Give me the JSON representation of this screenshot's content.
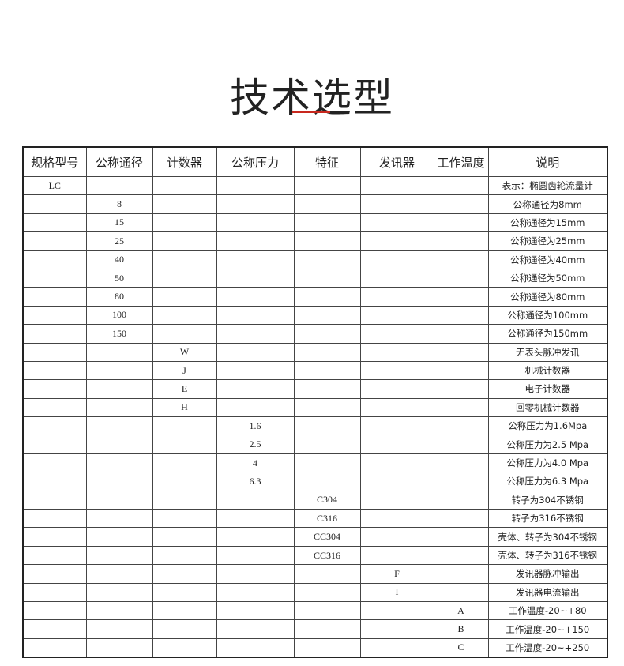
{
  "title": "技术选型",
  "accent_color": "#c8281e",
  "table": {
    "headers": [
      "规格型号",
      "公称通径",
      "计数器",
      "公称压力",
      "特征",
      "发讯器",
      "工作温度",
      "说明"
    ],
    "rows": [
      [
        "LC",
        "",
        "",
        "",
        "",
        "",
        "",
        "表示：椭圆齿轮流量计"
      ],
      [
        "",
        "8",
        "",
        "",
        "",
        "",
        "",
        "公称通径为8mm"
      ],
      [
        "",
        "15",
        "",
        "",
        "",
        "",
        "",
        "公称通径为15mm"
      ],
      [
        "",
        "25",
        "",
        "",
        "",
        "",
        "",
        "公称通径为25mm"
      ],
      [
        "",
        "40",
        "",
        "",
        "",
        "",
        "",
        "公称通径为40mm"
      ],
      [
        "",
        "50",
        "",
        "",
        "",
        "",
        "",
        "公称通径为50mm"
      ],
      [
        "",
        "80",
        "",
        "",
        "",
        "",
        "",
        "公称通径为80mm"
      ],
      [
        "",
        "100",
        "",
        "",
        "",
        "",
        "",
        "公称通径为100mm"
      ],
      [
        "",
        "150",
        "",
        "",
        "",
        "",
        "",
        "公称通径为150mm"
      ],
      [
        "",
        "",
        "W",
        "",
        "",
        "",
        "",
        "无表头脉冲发讯"
      ],
      [
        "",
        "",
        "J",
        "",
        "",
        "",
        "",
        "机械计数器"
      ],
      [
        "",
        "",
        "E",
        "",
        "",
        "",
        "",
        "电子计数器"
      ],
      [
        "",
        "",
        "H",
        "",
        "",
        "",
        "",
        "回零机械计数器"
      ],
      [
        "",
        "",
        "",
        "1.6",
        "",
        "",
        "",
        "公称压力为1.6Mpa"
      ],
      [
        "",
        "",
        "",
        "2.5",
        "",
        "",
        "",
        "公称压力为2.5 Mpa"
      ],
      [
        "",
        "",
        "",
        "4",
        "",
        "",
        "",
        "公称压力为4.0 Mpa"
      ],
      [
        "",
        "",
        "",
        "6.3",
        "",
        "",
        "",
        "公称压力为6.3 Mpa"
      ],
      [
        "",
        "",
        "",
        "",
        "C304",
        "",
        "",
        "转子为304不锈钢"
      ],
      [
        "",
        "",
        "",
        "",
        "C316",
        "",
        "",
        "转子为316不锈钢"
      ],
      [
        "",
        "",
        "",
        "",
        "CC304",
        "",
        "",
        "壳体、转子为304不锈钢"
      ],
      [
        "",
        "",
        "",
        "",
        "CC316",
        "",
        "",
        "壳体、转子为316不锈钢"
      ],
      [
        "",
        "",
        "",
        "",
        "",
        "F",
        "",
        "发讯器脉冲输出"
      ],
      [
        "",
        "",
        "",
        "",
        "",
        "I",
        "",
        "发讯器电流输出"
      ],
      [
        "",
        "",
        "",
        "",
        "",
        "",
        "A",
        "工作温度-20~+80"
      ],
      [
        "",
        "",
        "",
        "",
        "",
        "",
        "B",
        "工作温度-20~+150"
      ],
      [
        "",
        "",
        "",
        "",
        "",
        "",
        "C",
        "工作温度-20~+250"
      ]
    ]
  }
}
